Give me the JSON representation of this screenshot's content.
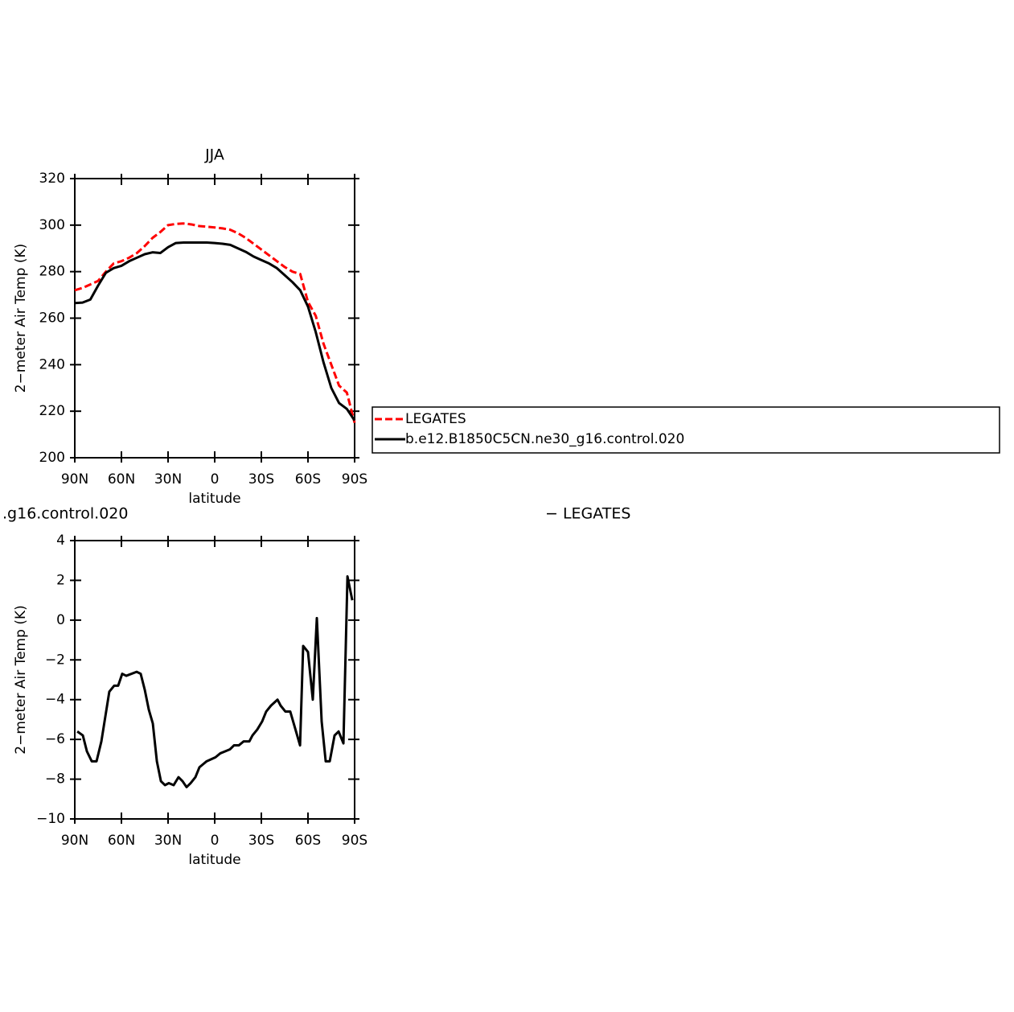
{
  "chart_data": [
    {
      "type": "line",
      "title": "JJA",
      "xlabel": "latitude",
      "ylabel": "2−meter Air Temp (K)",
      "x": [
        90,
        85,
        80,
        75,
        70,
        65,
        60,
        55,
        50,
        45,
        40,
        35,
        30,
        25,
        20,
        15,
        10,
        5,
        0,
        -5,
        -10,
        -15,
        -20,
        -25,
        -30,
        -35,
        -40,
        -45,
        -50,
        -55,
        -60,
        -65,
        -70,
        -75,
        -80,
        -85,
        -90
      ],
      "series": [
        {
          "name": "LEGATES",
          "color": "#ff0000",
          "dash": true,
          "values": [
            272,
            273,
            274.5,
            276,
            280,
            283.5,
            284.5,
            286,
            288,
            291,
            294.5,
            297,
            300,
            300.5,
            300.7,
            300.3,
            299.6,
            299.3,
            299,
            298.6,
            298,
            296.5,
            294.5,
            292,
            289.5,
            287,
            284.5,
            282,
            280,
            279,
            267,
            261,
            249,
            240,
            231,
            228,
            215
          ]
        },
        {
          "name": "b.e12.B1850C5CN.ne30_g16.control.020",
          "color": "#000000",
          "dash": false,
          "values": [
            266.5,
            266.7,
            268,
            274,
            279.5,
            281.5,
            282.5,
            284.5,
            286,
            287.5,
            288.3,
            288,
            290.5,
            292.3,
            292.5,
            292.5,
            292.5,
            292.5,
            292.3,
            292,
            291.5,
            290,
            288.5,
            286.5,
            285,
            283.5,
            281.5,
            278.5,
            275.5,
            272,
            265,
            254,
            241,
            230,
            223.5,
            221,
            216
          ]
        }
      ],
      "xlim": [
        90,
        -90
      ],
      "xticks": [
        {
          "value": 90,
          "label": "90N"
        },
        {
          "value": 60,
          "label": "60N"
        },
        {
          "value": 30,
          "label": "30N"
        },
        0,
        {
          "value": -30,
          "label": "30S"
        },
        {
          "value": -60,
          "label": "60S"
        },
        {
          "value": -90,
          "label": "90S"
        }
      ],
      "ylim": [
        200,
        320
      ],
      "yticks": [
        200,
        220,
        240,
        260,
        280,
        300,
        320
      ],
      "legend": "right"
    },
    {
      "type": "line",
      "left_title": ".g16.control.020",
      "right_title": "− LEGATES",
      "xlabel": "latitude",
      "ylabel": "2−meter Air Temp (K)",
      "x": [
        88.4,
        84.8,
        82.2,
        79.1,
        76,
        72.9,
        67.8,
        64.7,
        62.1,
        59.5,
        56.9,
        50.2,
        47.6,
        45,
        42.4,
        39.8,
        37.2,
        34.6,
        32,
        29.5,
        26.4,
        23.3,
        20.7,
        18.1,
        15.5,
        12.4,
        9.8,
        5.2,
        -0.5,
        -3.6,
        -6.7,
        -9.8,
        -12.4,
        -15.5,
        -18.6,
        -22.3,
        -24.3,
        -27.4,
        -30.5,
        -33.1,
        -36.2,
        -40.4,
        -42.4,
        -45.5,
        -48.6,
        -51.2,
        -54.9,
        -56.9,
        -60,
        -63.1,
        -65.7,
        -68.8,
        -71.4,
        -74,
        -77.1,
        -79.7,
        -82.8,
        -85.4,
        -88.5
      ],
      "series": [
        {
          "color": "#000000",
          "dash": false,
          "values": [
            -5.6,
            -5.8,
            -6.6,
            -7.1,
            -7.1,
            -6.1,
            -3.6,
            -3.3,
            -3.3,
            -2.7,
            -2.8,
            -2.6,
            -2.7,
            -3.5,
            -4.5,
            -5.2,
            -7.1,
            -8.1,
            -8.3,
            -8.2,
            -8.3,
            -7.9,
            -8.1,
            -8.4,
            -8.2,
            -7.9,
            -7.4,
            -7.1,
            -6.9,
            -6.7,
            -6.6,
            -6.5,
            -6.3,
            -6.3,
            -6.1,
            -6.1,
            -5.8,
            -5.5,
            -5.1,
            -4.6,
            -4.3,
            -4.0,
            -4.3,
            -4.6,
            -4.6,
            -5.3,
            -6.3,
            -1.3,
            -1.6,
            -4.0,
            0.1,
            -5.1,
            -7.1,
            -7.1,
            -5.8,
            -5.6,
            -6.2,
            2.2,
            1.0
          ]
        }
      ],
      "xlim": [
        90,
        -90
      ],
      "xticks": [
        {
          "value": 90,
          "label": "90N"
        },
        {
          "value": 60,
          "label": "60N"
        },
        {
          "value": 30,
          "label": "30N"
        },
        0,
        {
          "value": -30,
          "label": "30S"
        },
        {
          "value": -60,
          "label": "60S"
        },
        {
          "value": -90,
          "label": "90S"
        }
      ],
      "ylim": [
        -10,
        4
      ],
      "yticks": [
        {
          "value": -10,
          "label": "−10"
        },
        {
          "value": -8,
          "label": "−8"
        },
        {
          "value": -6,
          "label": "−6"
        },
        {
          "value": -4,
          "label": "−4"
        },
        {
          "value": -2,
          "label": "−2"
        },
        0,
        2,
        4
      ]
    }
  ]
}
